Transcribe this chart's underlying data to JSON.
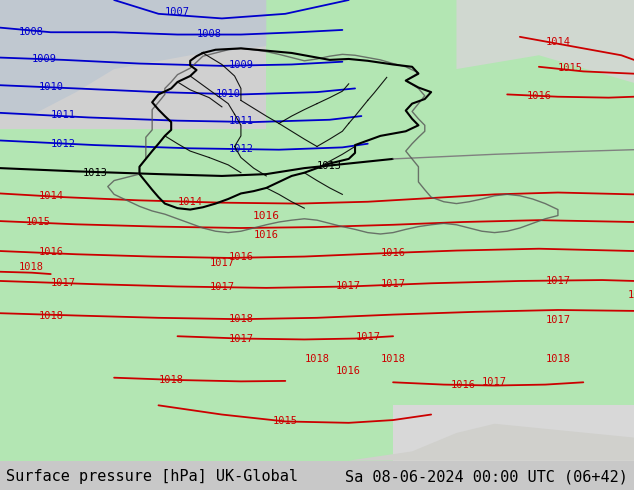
{
  "title_left": "Surface pressure [hPa] UK-Global",
  "title_right": "Sa 08-06-2024 00:00 UTC (06+42)",
  "bg_color_main": "#b3e6b3",
  "bg_color_grey": "#c8c8c8",
  "bg_color_white": "#f0f0f0",
  "text_color": "#000000",
  "blue_contour_color": "#0000cc",
  "red_contour_color": "#cc0000",
  "black_contour_color": "#000000",
  "grey_contour_color": "#808080",
  "footer_fontsize": 11,
  "contour_fontsize": 9
}
